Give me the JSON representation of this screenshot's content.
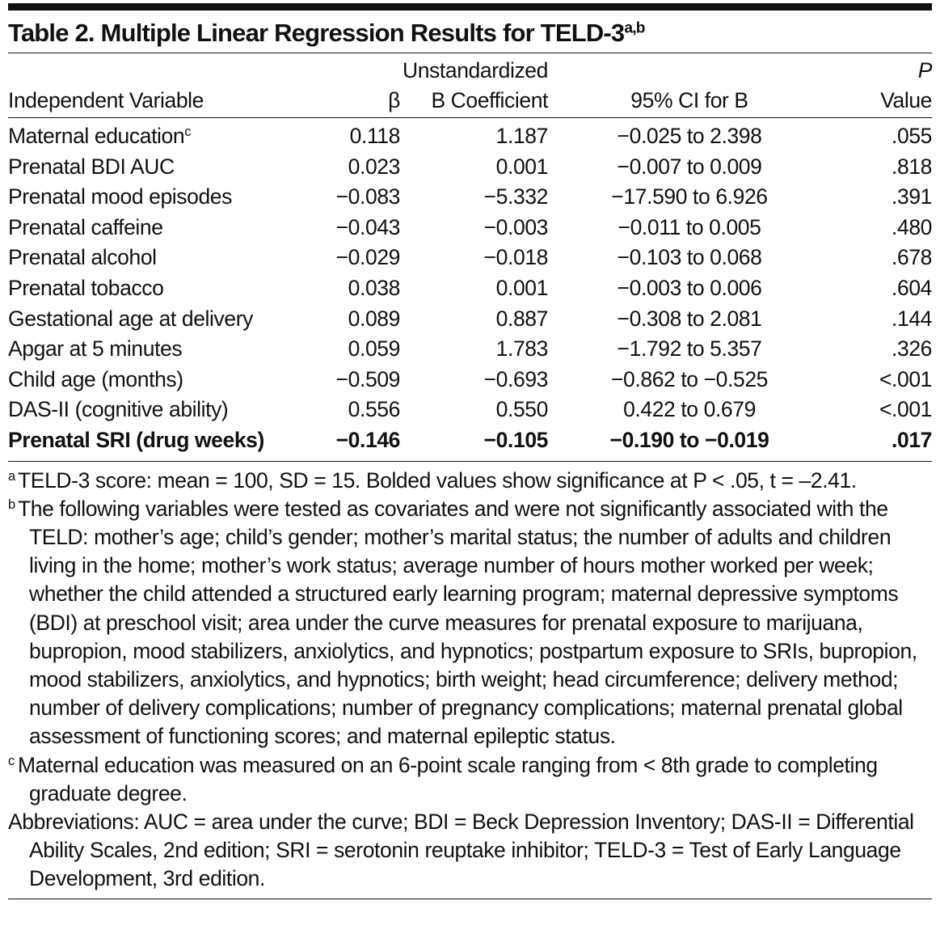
{
  "title": {
    "text": "Table 2. Multiple Linear Regression Results for TELD-3",
    "sup": "a,b"
  },
  "header": {
    "variable": "Independent Variable",
    "beta": "β",
    "b": [
      "Unstandardized",
      "B Coefficient"
    ],
    "ci": "95% CI for B",
    "p": [
      "P",
      "Value"
    ]
  },
  "rows": [
    {
      "variable": "Maternal education",
      "sup": "c",
      "beta": "0.118",
      "b": "1.187",
      "ci": "−0.025 to 2.398",
      "p": ".055"
    },
    {
      "variable": "Prenatal BDI AUC",
      "beta": "0.023",
      "b": "0.001",
      "ci": "−0.007 to 0.009",
      "p": ".818"
    },
    {
      "variable": "Prenatal mood episodes",
      "beta": "−0.083",
      "b": "−5.332",
      "ci": "−17.590 to 6.926",
      "p": ".391"
    },
    {
      "variable": "Prenatal caffeine",
      "beta": "−0.043",
      "b": "−0.003",
      "ci": "−0.011 to 0.005",
      "p": ".480"
    },
    {
      "variable": "Prenatal alcohol",
      "beta": "−0.029",
      "b": "−0.018",
      "ci": "−0.103 to 0.068",
      "p": ".678"
    },
    {
      "variable": "Prenatal tobacco",
      "beta": "0.038",
      "b": "0.001",
      "ci": "−0.003 to 0.006",
      "p": ".604"
    },
    {
      "variable": "Gestational age at delivery",
      "beta": "0.089",
      "b": "0.887",
      "ci": "−0.308 to 2.081",
      "p": ".144"
    },
    {
      "variable": "Apgar at 5 minutes",
      "beta": "0.059",
      "b": "1.783",
      "ci": "−1.792 to 5.357",
      "p": ".326"
    },
    {
      "variable": "Child age (months)",
      "beta": "−0.509",
      "b": "−0.693",
      "ci": "−0.862 to −0.525",
      "p": "<.001"
    },
    {
      "variable": "DAS-II (cognitive ability)",
      "beta": "0.556",
      "b": "0.550",
      "ci": "0.422 to 0.679",
      "p": "<.001"
    },
    {
      "variable": "Prenatal SRI (drug weeks)",
      "beta": "−0.146",
      "b": "−0.105",
      "ci": "−0.190 to −0.019",
      "p": ".017"
    }
  ],
  "footnotes": [
    {
      "mark": "a",
      "text": "TELD-3 score: mean = 100, SD = 15. Bolded values show significance at P < .05, t = –2.41."
    },
    {
      "mark": "b",
      "text": "The following variables were tested as covariates and were not significantly associated with the TELD: mother’s age; child’s gender; mother’s marital status; the number of adults and children living in the home; mother’s work status; average number of hours mother worked per week; whether the child attended a structured early learning program; maternal depressive symptoms (BDI) at preschool visit; area under the curve measures for prenatal exposure to marijuana, bupropion, mood stabilizers, anxiolytics, and hypnotics; postpartum exposure to SRIs, bupropion, mood stabilizers, anxiolytics, and hypnotics; birth weight; head circumference; delivery method; number of delivery complications; number of pregnancy complications; maternal prenatal global assessment of functioning scores; and maternal epileptic status."
    },
    {
      "mark": "c",
      "text": "Maternal education was measured on an 6-point scale ranging from < 8th grade to completing graduate degree."
    }
  ],
  "abbreviations": "Abbreviations: AUC = area under the curve; BDI = Beck Depression Inventory; DAS-II = Differential Ability Scales, 2nd edition; SRI = serotonin reuptake inhibitor; TELD-3 = Test of Early Language Development, 3rd edition."
}
